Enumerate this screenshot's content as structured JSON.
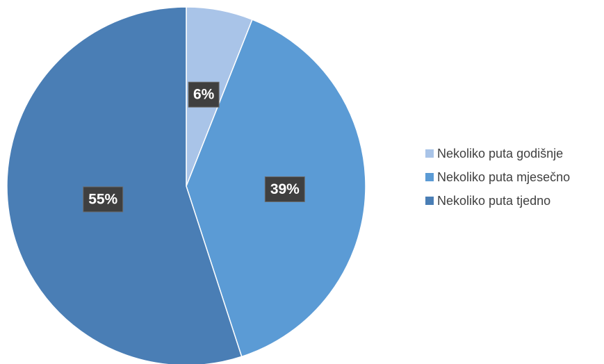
{
  "chart_data": {
    "type": "pie",
    "title": "",
    "legend_position": "right",
    "start_angle_deg": 0,
    "direction": "clockwise",
    "slices": [
      {
        "label": "Nekoliko puta godišnje",
        "value": 6,
        "value_label": "6%",
        "color": "#a9c4e8"
      },
      {
        "label": "Nekoliko puta mjesečno",
        "value": 39,
        "value_label": "39%",
        "color": "#5b9bd5"
      },
      {
        "label": "Nekoliko puta tjedno",
        "value": 55,
        "value_label": "55%",
        "color": "#4a7eb5"
      }
    ]
  }
}
